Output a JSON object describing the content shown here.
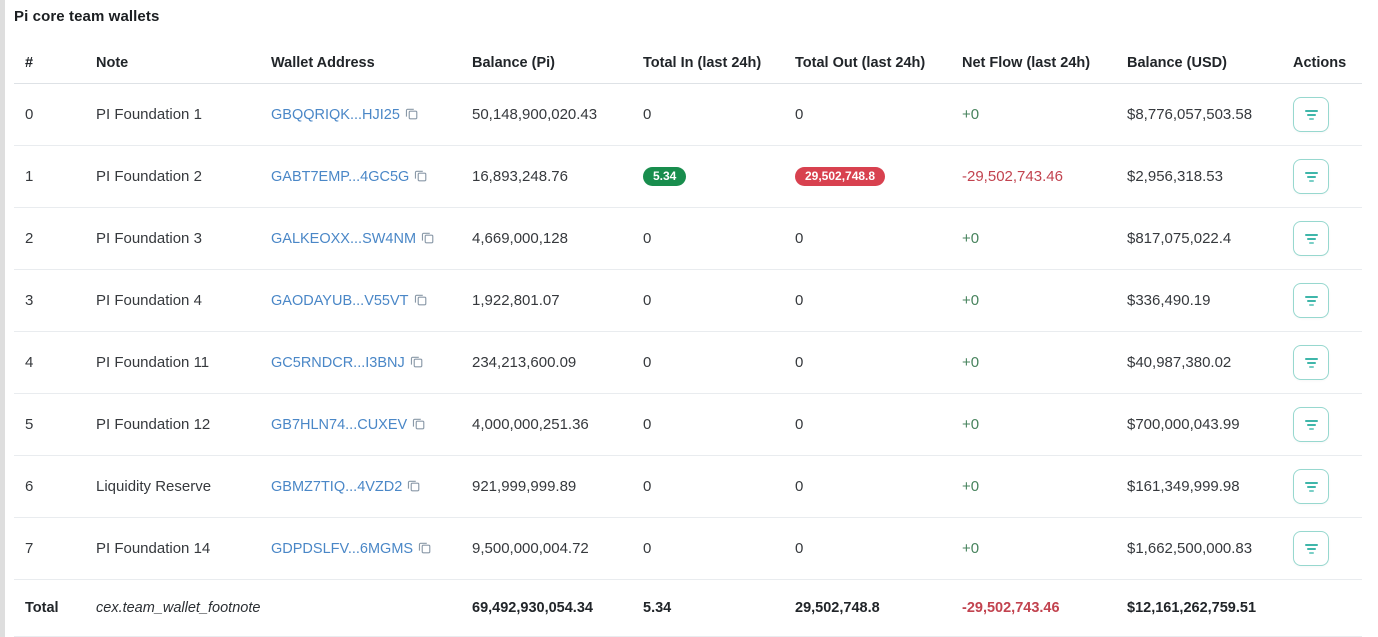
{
  "page": {
    "title": "Pi core team wallets"
  },
  "colors": {
    "link_blue": "#4a87c7",
    "positive_green": "#47835d",
    "negative_red": "#c2434f",
    "badge_green": "#188d4d",
    "badge_red": "#d8414f",
    "action_border_teal": "#97d8cf",
    "action_icon_teal": "#3fb6aa"
  },
  "icons": {
    "copy": "copy-icon",
    "actions": "filter-lines-icon"
  },
  "table": {
    "columns": [
      "#",
      "Note",
      "Wallet Address",
      "Balance (Pi)",
      "Total In (last 24h)",
      "Total Out (last 24h)",
      "Net Flow (last 24h)",
      "Balance (USD)",
      "Actions"
    ],
    "rows": [
      {
        "index": "0",
        "note": "PI Foundation 1",
        "address": "GBQQRIQK...HJI25",
        "balance_pi": "50,148,900,020.43",
        "total_in": "0",
        "total_in_badge": false,
        "total_out": "0",
        "total_out_badge": false,
        "net_flow": "+0",
        "net_flow_negative": false,
        "balance_usd": "$8,776,057,503.58"
      },
      {
        "index": "1",
        "note": "PI Foundation 2",
        "address": "GABT7EMP...4GC5G",
        "balance_pi": "16,893,248.76",
        "total_in": "5.34",
        "total_in_badge": true,
        "total_out": "29,502,748.8",
        "total_out_badge": true,
        "net_flow": "-29,502,743.46",
        "net_flow_negative": true,
        "balance_usd": "$2,956,318.53"
      },
      {
        "index": "2",
        "note": "PI Foundation 3",
        "address": "GALKEOXX...SW4NM",
        "balance_pi": "4,669,000,128",
        "total_in": "0",
        "total_in_badge": false,
        "total_out": "0",
        "total_out_badge": false,
        "net_flow": "+0",
        "net_flow_negative": false,
        "balance_usd": "$817,075,022.4"
      },
      {
        "index": "3",
        "note": "PI Foundation 4",
        "address": "GAODAYUB...V55VT",
        "balance_pi": "1,922,801.07",
        "total_in": "0",
        "total_in_badge": false,
        "total_out": "0",
        "total_out_badge": false,
        "net_flow": "+0",
        "net_flow_negative": false,
        "balance_usd": "$336,490.19"
      },
      {
        "index": "4",
        "note": "PI Foundation 11",
        "address": "GC5RNDCR...I3BNJ",
        "balance_pi": "234,213,600.09",
        "total_in": "0",
        "total_in_badge": false,
        "total_out": "0",
        "total_out_badge": false,
        "net_flow": "+0",
        "net_flow_negative": false,
        "balance_usd": "$40,987,380.02"
      },
      {
        "index": "5",
        "note": "PI Foundation 12",
        "address": "GB7HLN74...CUXEV",
        "balance_pi": "4,000,000,251.36",
        "total_in": "0",
        "total_in_badge": false,
        "total_out": "0",
        "total_out_badge": false,
        "net_flow": "+0",
        "net_flow_negative": false,
        "balance_usd": "$700,000,043.99"
      },
      {
        "index": "6",
        "note": "Liquidity Reserve",
        "address": "GBMZ7TIQ...4VZD2",
        "balance_pi": "921,999,999.89",
        "total_in": "0",
        "total_in_badge": false,
        "total_out": "0",
        "total_out_badge": false,
        "net_flow": "+0",
        "net_flow_negative": false,
        "balance_usd": "$161,349,999.98"
      },
      {
        "index": "7",
        "note": "PI Foundation 14",
        "address": "GDPDSLFV...6MGMS",
        "balance_pi": "9,500,000,004.72",
        "total_in": "0",
        "total_in_badge": false,
        "total_out": "0",
        "total_out_badge": false,
        "net_flow": "+0",
        "net_flow_negative": false,
        "balance_usd": "$1,662,500,000.83"
      }
    ],
    "total_row": {
      "label": "Total",
      "footnote": "cex.team_wallet_footnote",
      "balance_pi": "69,492,930,054.34",
      "total_in": "5.34",
      "total_out": "29,502,748.8",
      "net_flow": "-29,502,743.46",
      "balance_usd": "$12,161,262,759.51"
    }
  }
}
